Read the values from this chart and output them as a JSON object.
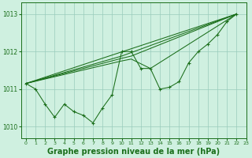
{
  "background_color": "#cff0e0",
  "plot_bg_color": "#cff0e0",
  "grid_color": "#99ccbb",
  "line_color": "#1a6e1a",
  "xlabel": "Graphe pression niveau de la mer (hPa)",
  "xlabel_fontsize": 7,
  "xlim": [
    -0.5,
    23
  ],
  "ylim": [
    1009.7,
    1013.3
  ],
  "yticks": [
    1010,
    1011,
    1012,
    1013
  ],
  "xticks": [
    0,
    1,
    2,
    3,
    4,
    5,
    6,
    7,
    8,
    9,
    10,
    11,
    12,
    13,
    14,
    15,
    16,
    17,
    18,
    19,
    20,
    21,
    22,
    23
  ],
  "main_x": [
    0,
    1,
    2,
    3,
    4,
    5,
    6,
    7,
    8,
    9,
    10,
    11,
    12,
    13,
    14,
    15,
    16,
    17,
    18,
    19,
    20,
    21,
    22
  ],
  "main_y": [
    1011.15,
    1011.0,
    1010.6,
    1010.25,
    1010.6,
    1010.4,
    1010.3,
    1010.1,
    1010.5,
    1010.85,
    1012.0,
    1012.0,
    1011.55,
    1011.55,
    1011.0,
    1011.05,
    1011.2,
    1011.7,
    1012.0,
    1012.2,
    1012.45,
    1012.8,
    1013.0
  ],
  "trend_lines": [
    {
      "x": [
        0,
        22
      ],
      "y": [
        1011.15,
        1013.0
      ]
    },
    {
      "x": [
        0,
        22
      ],
      "y": [
        1011.15,
        1013.0
      ]
    },
    {
      "x": [
        0,
        22
      ],
      "y": [
        1011.15,
        1013.0
      ]
    },
    {
      "x": [
        0,
        22
      ],
      "y": [
        1011.15,
        1013.0
      ]
    }
  ],
  "fan_lines": [
    {
      "x": [
        0,
        10,
        11,
        13,
        22
      ],
      "y": [
        1011.15,
        1011.75,
        1011.8,
        1011.55,
        1013.0
      ]
    },
    {
      "x": [
        0,
        10,
        11,
        22
      ],
      "y": [
        1011.15,
        1011.82,
        1011.88,
        1013.0
      ]
    },
    {
      "x": [
        0,
        10,
        22
      ],
      "y": [
        1011.15,
        1011.88,
        1013.0
      ]
    },
    {
      "x": [
        0,
        22
      ],
      "y": [
        1011.15,
        1013.0
      ]
    }
  ]
}
